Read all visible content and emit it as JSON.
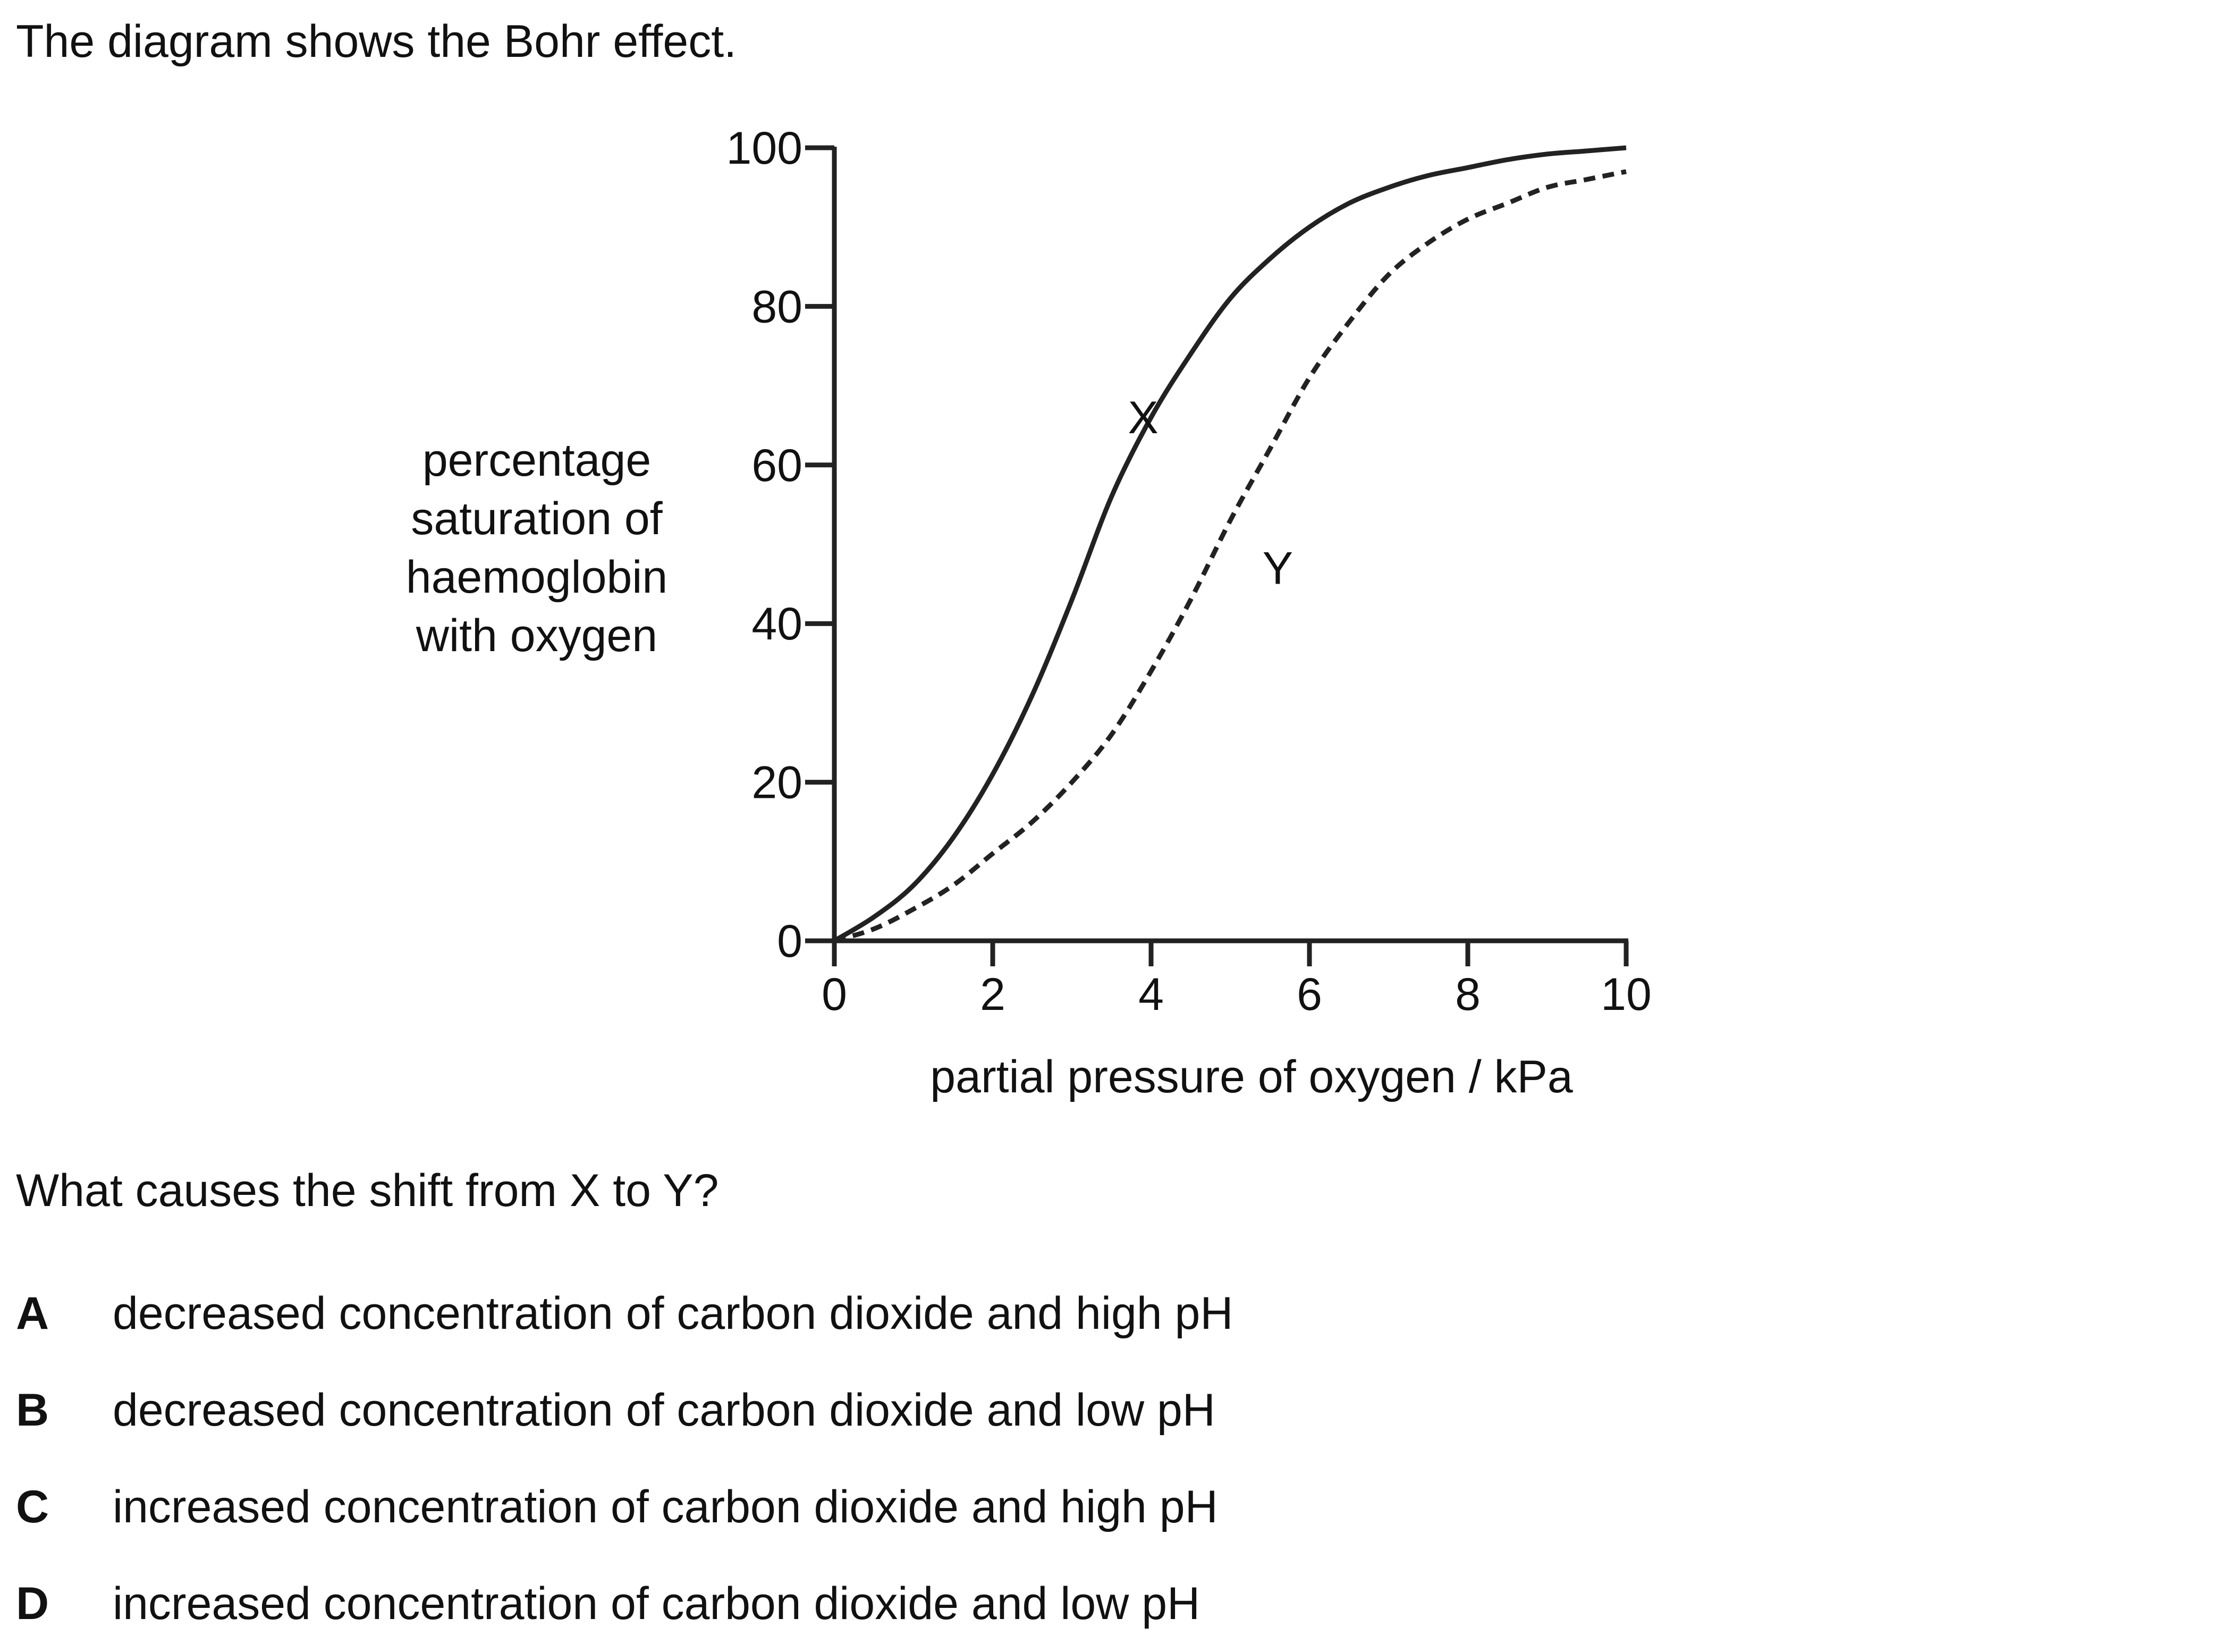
{
  "intro_text": "The diagram shows the Bohr effect.",
  "question_text": "What causes the shift from X to Y?",
  "options": [
    {
      "letter": "A",
      "text": "decreased concentration of carbon dioxide and high pH"
    },
    {
      "letter": "B",
      "text": "decreased concentration of carbon dioxide and low pH"
    },
    {
      "letter": "C",
      "text": "increased concentration of carbon dioxide and high pH"
    },
    {
      "letter": "D",
      "text": "increased concentration of carbon dioxide and low pH"
    }
  ],
  "chart_data": {
    "type": "line",
    "title": "",
    "xlabel": "partial pressure of oxygen / kPa",
    "ylabel_lines": [
      "percentage",
      "saturation of",
      "haemoglobin",
      "with oxygen"
    ],
    "xlim": [
      0,
      10
    ],
    "ylim": [
      0,
      100
    ],
    "x_ticks": [
      0,
      2,
      4,
      6,
      8,
      10
    ],
    "y_ticks": [
      0,
      20,
      40,
      60,
      80,
      100
    ],
    "grid": false,
    "series": [
      {
        "name": "X",
        "style": "solid",
        "x": [
          0,
          0.5,
          1,
          1.5,
          2,
          2.5,
          3,
          3.5,
          4,
          4.5,
          5,
          5.5,
          6,
          6.5,
          7,
          7.5,
          8,
          8.5,
          9,
          9.5,
          10
        ],
        "y": [
          0,
          3,
          7,
          13,
          21,
          31,
          43,
          56,
          66,
          74,
          81,
          86,
          90,
          93,
          95,
          96.5,
          97.5,
          98.5,
          99.2,
          99.6,
          100
        ]
      },
      {
        "name": "Y",
        "style": "dashed",
        "x": [
          0,
          0.5,
          1,
          1.5,
          2,
          2.5,
          3,
          3.5,
          4,
          4.5,
          5,
          5.5,
          6,
          6.5,
          7,
          7.5,
          8,
          8.5,
          9,
          9.5,
          10
        ],
        "y": [
          0,
          1.5,
          4,
          7,
          11,
          15,
          20,
          26,
          34,
          43,
          53,
          62,
          71,
          78,
          84,
          88,
          91,
          93,
          95,
          96,
          97
        ]
      }
    ],
    "curve_labels": [
      {
        "text": "X",
        "x": 3.9,
        "y": 64
      },
      {
        "text": "Y",
        "x": 5.6,
        "y": 45
      }
    ]
  }
}
